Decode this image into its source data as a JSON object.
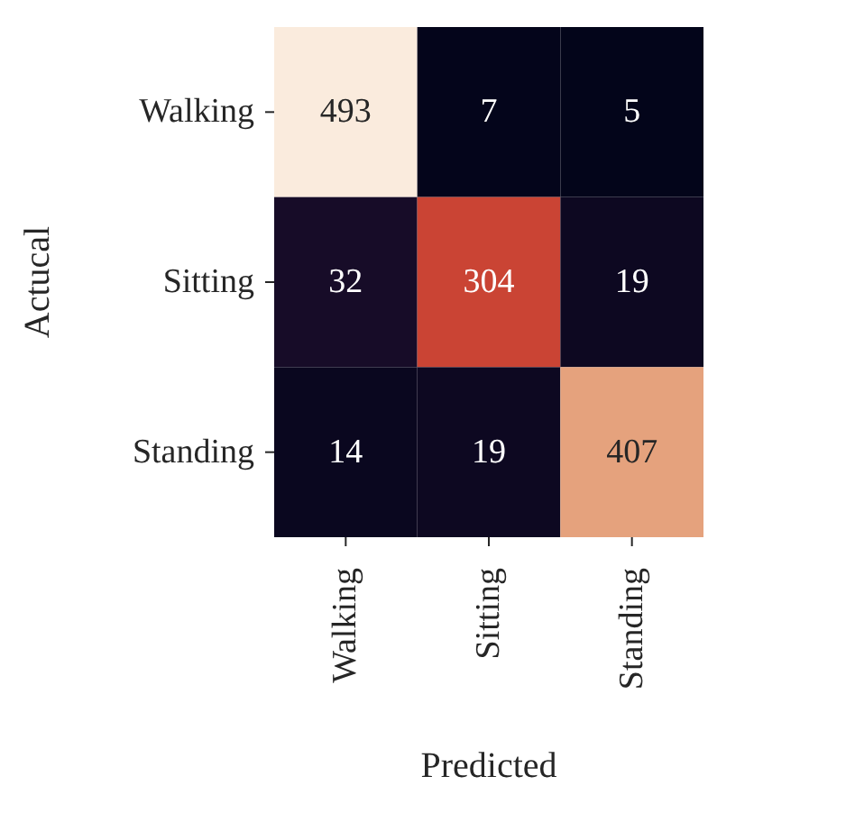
{
  "chart_data": {
    "type": "heatmap",
    "data_labels": true,
    "xlabel": "Predicted",
    "ylabel": "Actucal",
    "categories": [
      "Walking",
      "Sitting",
      "Standing"
    ],
    "y_categories": [
      "Walking",
      "Sitting",
      "Standing"
    ],
    "cells": [
      [
        493,
        7,
        5
      ],
      [
        32,
        304,
        19
      ],
      [
        14,
        19,
        407
      ]
    ]
  }
}
